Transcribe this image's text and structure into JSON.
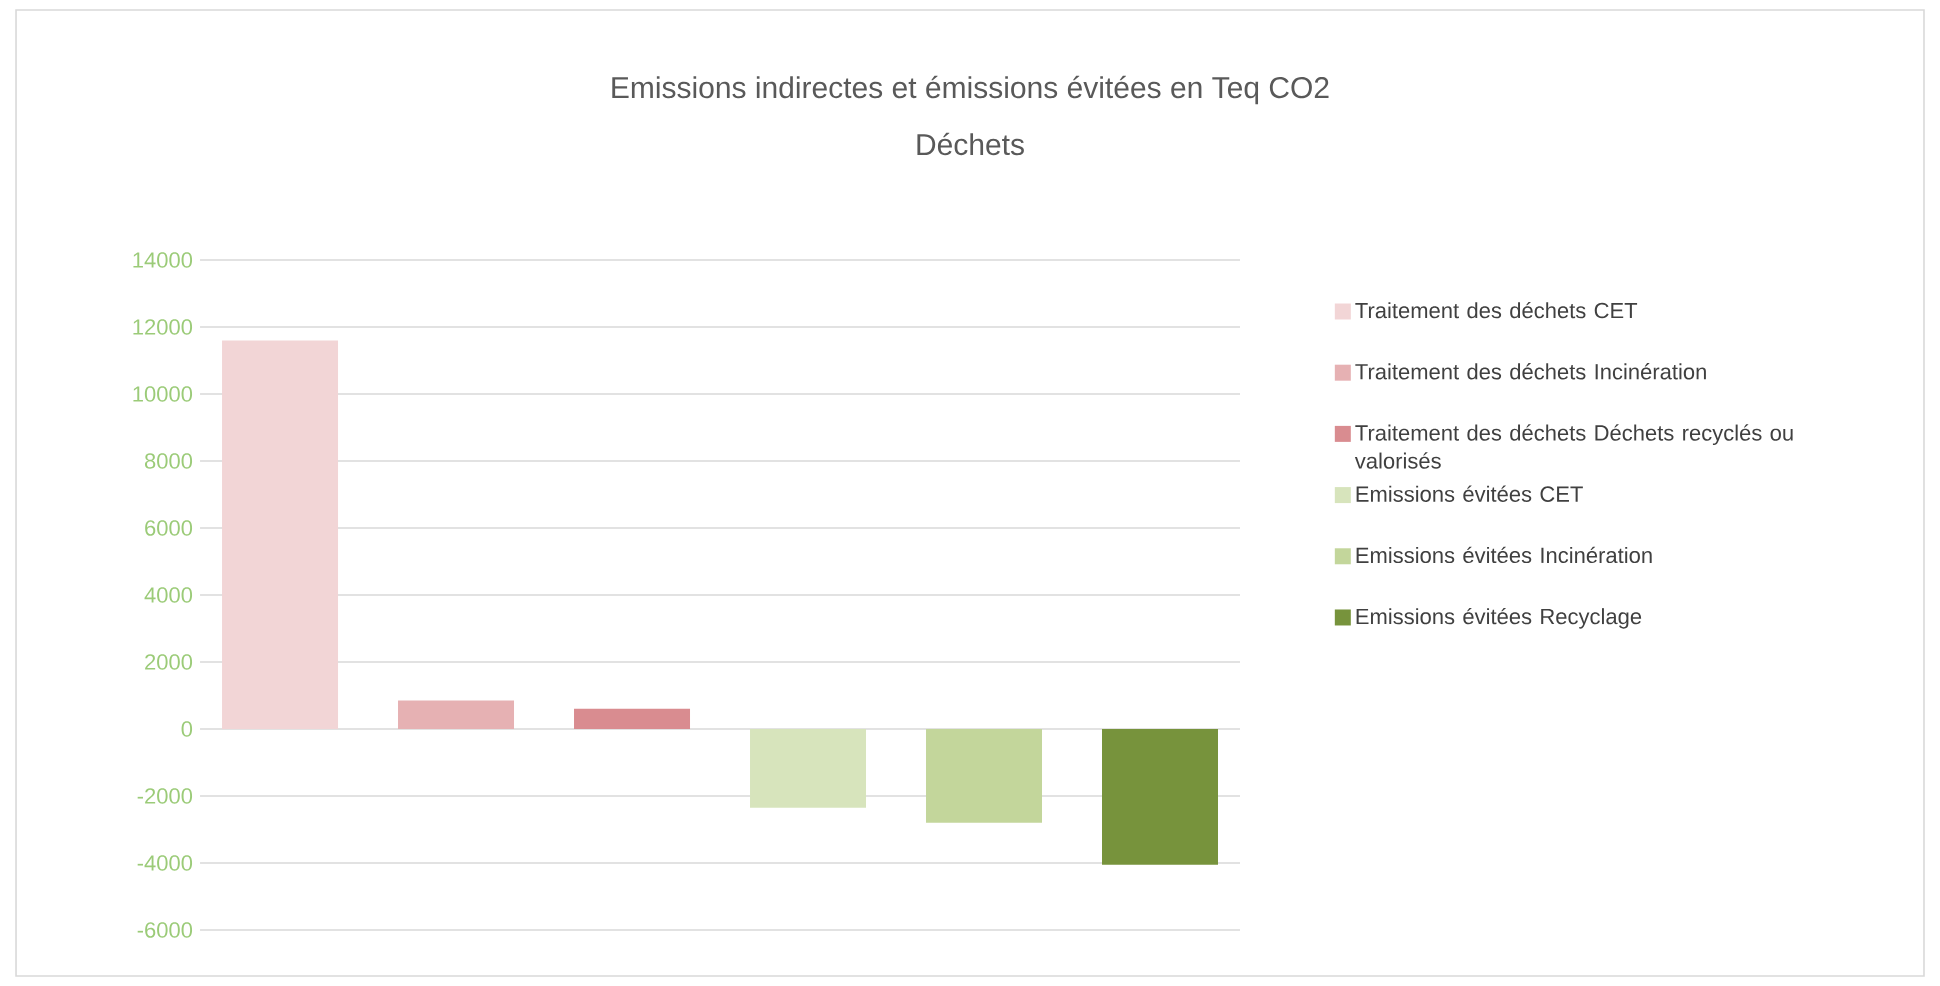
{
  "chart_data": {
    "type": "bar",
    "title": "Emissions indirectes et émissions évitées en Teq CO2",
    "subtitle": "Déchets",
    "categories": [
      null
    ],
    "series": [
      {
        "name": "Traitement des déchets CET",
        "color": "#f2d5d6",
        "values": [
          11600
        ]
      },
      {
        "name": "Traitement des déchets Incinération",
        "color": "#e6b1b3",
        "values": [
          850
        ]
      },
      {
        "name": "Traitement des déchets Déchets recyclés ou valorisés",
        "color": "#d98c90",
        "values": [
          600
        ]
      },
      {
        "name": "Emissions évitées CET",
        "color": "#d7e4bc",
        "values": [
          -2350
        ]
      },
      {
        "name": "Emissions évitées Incinération",
        "color": "#c3d69b",
        "values": [
          -2800
        ]
      },
      {
        "name": "Emissions évitées Recyclage",
        "color": "#77933c",
        "values": [
          -4050
        ]
      }
    ],
    "ylim": [
      -6000,
      14000
    ],
    "yticks": [
      -6000,
      -4000,
      -2000,
      0,
      2000,
      4000,
      6000,
      8000,
      10000,
      12000,
      14000
    ],
    "grid": "y",
    "legend": "right"
  }
}
